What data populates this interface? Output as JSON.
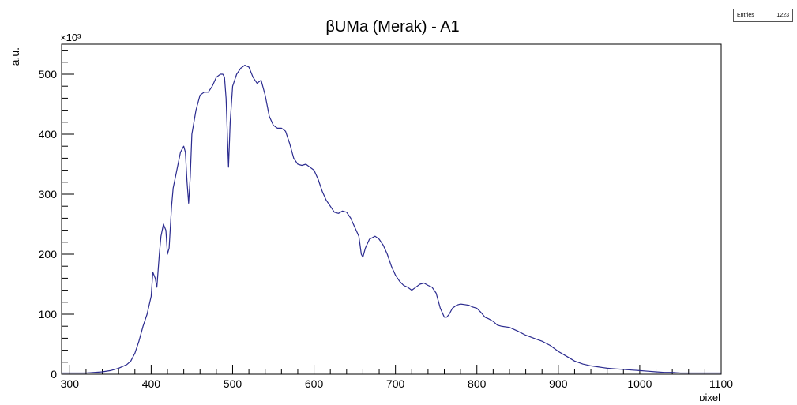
{
  "chart_data": {
    "type": "line",
    "title": "βUMa (Merak) - A1",
    "xlabel": "pixel",
    "ylabel": "a.u.",
    "y_exponent_label": "×10³",
    "xlim": [
      290,
      1100
    ],
    "ylim": [
      0,
      550
    ],
    "x_ticks": [
      300,
      400,
      500,
      600,
      700,
      800,
      900,
      1000,
      1100
    ],
    "y_ticks": [
      0,
      100,
      200,
      300,
      400,
      500
    ],
    "grid": false,
    "line_color": "#2b2b8f",
    "stats": {
      "label": "Entries",
      "value": "1223"
    },
    "series": [
      {
        "x": [
          290,
          300,
          320,
          340,
          350,
          360,
          370,
          375,
          380,
          385,
          390,
          395,
          400,
          402,
          405,
          407,
          410,
          412,
          415,
          418,
          420,
          422,
          425,
          427,
          430,
          433,
          436,
          440,
          442,
          444,
          446,
          448,
          450,
          455,
          460,
          465,
          470,
          475,
          480,
          485,
          488,
          490,
          492,
          495,
          497,
          500,
          505,
          510,
          515,
          520,
          525,
          530,
          535,
          540,
          545,
          550,
          555,
          560,
          565,
          570,
          575,
          580,
          585,
          590,
          595,
          600,
          605,
          610,
          615,
          620,
          625,
          630,
          635,
          640,
          645,
          650,
          655,
          658,
          660,
          663,
          668,
          675,
          680,
          685,
          690,
          695,
          700,
          705,
          710,
          715,
          720,
          725,
          730,
          735,
          740,
          745,
          750,
          755,
          760,
          763,
          766,
          770,
          775,
          780,
          785,
          790,
          795,
          800,
          805,
          810,
          815,
          820,
          825,
          830,
          840,
          850,
          860,
          870,
          880,
          890,
          900,
          910,
          920,
          930,
          940,
          950,
          960,
          970,
          980,
          990,
          1000,
          1010,
          1020,
          1030,
          1040,
          1050,
          1060,
          1070,
          1080,
          1090,
          1100
        ],
        "y": [
          2,
          2,
          2,
          4,
          6,
          10,
          16,
          22,
          35,
          55,
          80,
          100,
          130,
          170,
          160,
          145,
          200,
          230,
          250,
          240,
          200,
          210,
          280,
          310,
          330,
          350,
          370,
          380,
          370,
          320,
          285,
          330,
          400,
          440,
          465,
          470,
          470,
          480,
          495,
          500,
          500,
          495,
          460,
          345,
          420,
          480,
          500,
          510,
          515,
          512,
          495,
          485,
          490,
          465,
          430,
          415,
          410,
          410,
          405,
          385,
          360,
          350,
          348,
          350,
          345,
          340,
          325,
          305,
          290,
          280,
          270,
          268,
          272,
          270,
          260,
          245,
          230,
          200,
          195,
          210,
          225,
          230,
          225,
          215,
          200,
          180,
          165,
          155,
          148,
          145,
          140,
          145,
          150,
          152,
          148,
          145,
          135,
          110,
          95,
          95,
          100,
          110,
          115,
          117,
          116,
          115,
          112,
          110,
          103,
          95,
          92,
          88,
          82,
          80,
          78,
          72,
          65,
          60,
          55,
          48,
          38,
          30,
          22,
          17,
          14,
          12,
          10,
          9,
          8,
          7,
          6,
          5,
          4,
          3,
          3,
          2,
          2,
          2,
          2,
          2,
          2
        ]
      }
    ]
  }
}
